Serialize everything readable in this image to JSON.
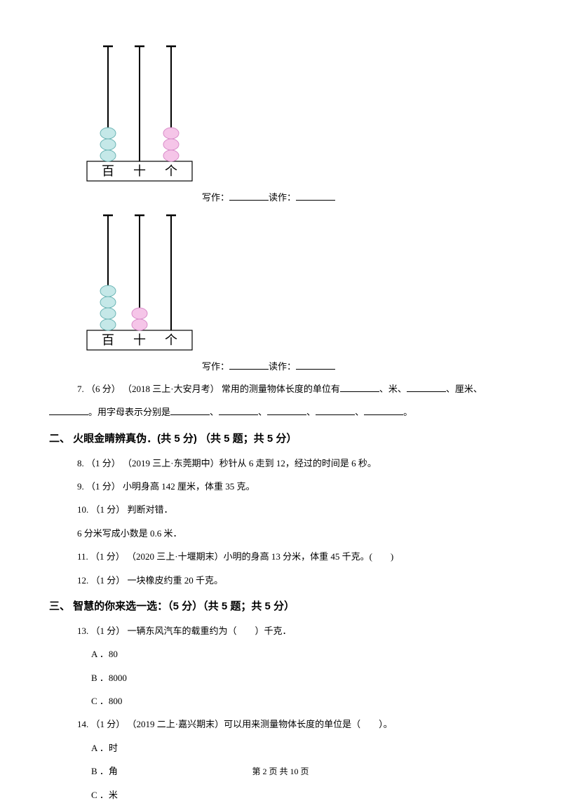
{
  "abacus1": {
    "beads": [
      3,
      0,
      3
    ],
    "bead_colors": [
      "#c5e8e8",
      "#f5c5e8",
      "#f5c5e8"
    ],
    "bead_stroke": [
      "#6bb5b5",
      "#d98cc9",
      "#d98cc9"
    ],
    "labels": [
      "百",
      "十",
      "个"
    ],
    "fill_prefix": "写作：",
    "fill_mid": "读作："
  },
  "abacus2": {
    "beads": [
      4,
      2,
      0
    ],
    "bead_colors": [
      "#c5e8e8",
      "#f5c5e8",
      "#f5c5e8"
    ],
    "bead_stroke": [
      "#6bb5b5",
      "#d98cc9",
      "#d98cc9"
    ],
    "labels": [
      "百",
      "十",
      "个"
    ],
    "fill_prefix": "写作：",
    "fill_mid": "读作："
  },
  "q7": {
    "main": "7. （6 分） （2018 三上·大安月考）  常用的测量物体长度的单位有",
    "mid1": "、米、",
    "mid2": "、厘米、",
    "line2_prefix": "。用字母表示分别是",
    "sep": "、",
    "end": "。"
  },
  "section2": "二、 火眼金睛辨真伪．(共 5 分) （共 5 题；共 5 分）",
  "q8": "8. （1 分） （2019 三上·东莞期中）秒针从 6 走到 12，经过的时间是 6 秒。",
  "q9": "9. （1 分）  小明身高 142 厘米，体重 35 克。",
  "q10a": "10. （1 分）  判断对错．",
  "q10b": "6 分米写成小数是 0.6 米．",
  "q11": "11. （1 分） （2020 三上·十堰期末）小明的身高 13 分米，体重 45 千克。(　　)",
  "q12": "12. （1 分）  一块橡皮约重 20 千克。",
  "section3": "三、 智慧的你来选一选：（5 分）（共 5 题；共 5 分）",
  "q13": "13. （1 分）  一辆东风汽车的载重约为（　　）千克．",
  "q13a": "A ．80",
  "q13b": "B ．8000",
  "q13c": "C ．800",
  "q14": "14. （1 分） （2019 二上·嘉兴期末）可以用来测量物体长度的单位是（　　）。",
  "q14a": "A ．时",
  "q14b": "B ．角",
  "q14c": "C ．米",
  "footer": "第 2 页 共 10 页"
}
